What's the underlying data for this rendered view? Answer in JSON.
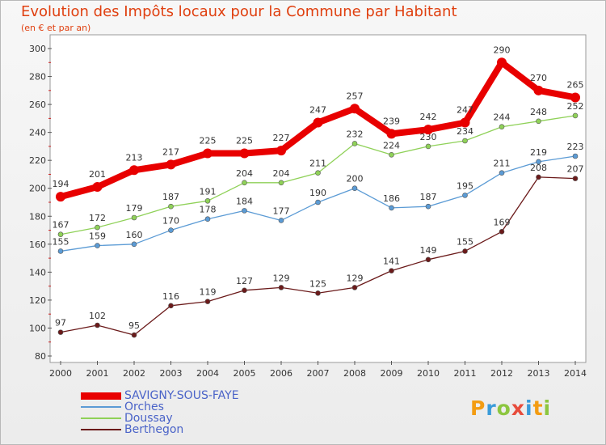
{
  "chart_data": {
    "type": "line",
    "title": "Evolution des Impôts locaux pour la Commune par Habitant",
    "subtitle": "(en € et par an)",
    "categories": [
      "2000",
      "2001",
      "2002",
      "2003",
      "2004",
      "2005",
      "2006",
      "2007",
      "2008",
      "2009",
      "2010",
      "2011",
      "2012",
      "2013",
      "2014"
    ],
    "ylim": [
      80,
      300
    ],
    "yticks": [
      80,
      100,
      120,
      140,
      160,
      180,
      200,
      220,
      240,
      260,
      280,
      300
    ],
    "grid": false,
    "legend_position": "bottom-left",
    "series": [
      {
        "name": "SAVIGNY-SOUS-FAYE",
        "color": "#e80000",
        "values": [
          194,
          201,
          213,
          217,
          225,
          225,
          227,
          247,
          257,
          239,
          242,
          247,
          290,
          270,
          265
        ]
      },
      {
        "name": "Orches",
        "color": "#5b9bd5",
        "values": [
          155,
          159,
          160,
          170,
          178,
          184,
          177,
          190,
          200,
          186,
          187,
          195,
          211,
          219,
          223
        ]
      },
      {
        "name": "Doussay",
        "color": "#8fd158",
        "values": [
          167,
          172,
          179,
          187,
          191,
          204,
          204,
          211,
          232,
          224,
          230,
          234,
          244,
          248,
          252
        ]
      },
      {
        "name": "Berthegon",
        "color": "#6b1a1a",
        "values": [
          97,
          102,
          95,
          116,
          119,
          127,
          129,
          125,
          129,
          141,
          149,
          155,
          169,
          208,
          207
        ]
      }
    ]
  },
  "logo": {
    "text": "Proxiti",
    "letters": [
      {
        "ch": "P",
        "color": "#f39c12"
      },
      {
        "ch": "r",
        "color": "#3a9bd9"
      },
      {
        "ch": "o",
        "color": "#8cc63f"
      },
      {
        "ch": "x",
        "color": "#e74c3c"
      },
      {
        "ch": "i",
        "color": "#3a9bd9"
      },
      {
        "ch": "t",
        "color": "#f39c12"
      },
      {
        "ch": "i",
        "color": "#8cc63f"
      }
    ]
  }
}
